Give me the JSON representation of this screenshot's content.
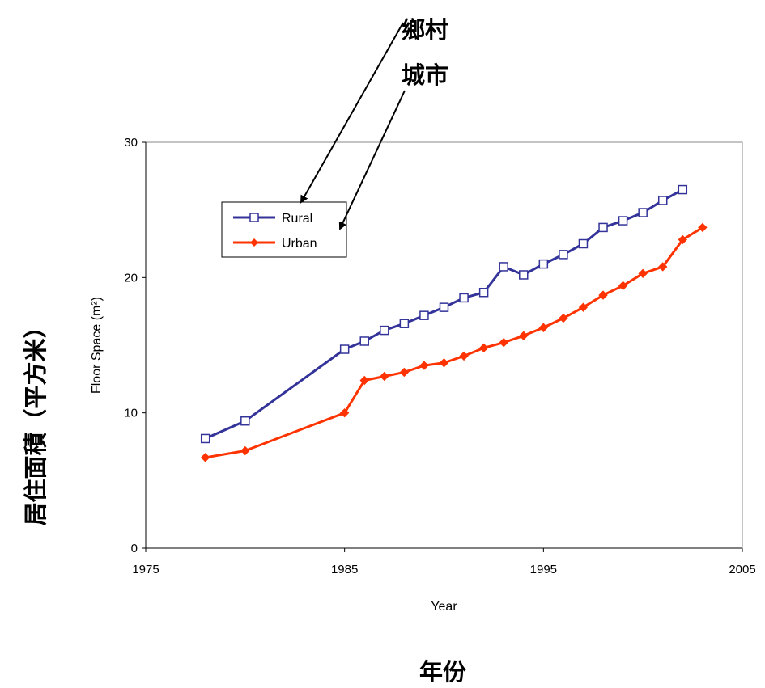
{
  "annotations": {
    "rural_cn": "鄉村",
    "urban_cn": "城市",
    "outer_xlabel": "年份",
    "outer_ylabel": "居住面積（平方米）"
  },
  "chart_data": {
    "type": "line",
    "title": "",
    "xlabel": "Year",
    "ylabel": "Floor Space (m²)",
    "xlim": [
      1975,
      2005
    ],
    "ylim": [
      0,
      30
    ],
    "xticks": [
      1975,
      1985,
      1995,
      2005
    ],
    "yticks": [
      0,
      10,
      20,
      30
    ],
    "grid": false,
    "legend_position": "upper-left",
    "series": [
      {
        "name": "Rural",
        "color": "#33339a",
        "marker": "open-square",
        "x": [
          1978,
          1980,
          1985,
          1986,
          1987,
          1988,
          1989,
          1990,
          1991,
          1992,
          1993,
          1994,
          1995,
          1996,
          1997,
          1998,
          1999,
          2000,
          2001,
          2002
        ],
        "y": [
          8.1,
          9.4,
          14.7,
          15.3,
          16.1,
          16.6,
          17.2,
          17.8,
          18.5,
          18.9,
          20.8,
          20.2,
          21.0,
          21.7,
          22.5,
          23.7,
          24.2,
          24.8,
          25.7,
          26.5
        ]
      },
      {
        "name": "Urban",
        "color": "#ff3300",
        "marker": "filled-diamond",
        "x": [
          1978,
          1980,
          1985,
          1986,
          1987,
          1988,
          1989,
          1990,
          1991,
          1992,
          1993,
          1994,
          1995,
          1996,
          1997,
          1998,
          1999,
          2000,
          2001,
          2002,
          2003
        ],
        "y": [
          6.7,
          7.2,
          10.0,
          12.4,
          12.7,
          13.0,
          13.5,
          13.7,
          14.2,
          14.8,
          15.2,
          15.7,
          16.3,
          17.0,
          17.8,
          18.7,
          19.4,
          20.3,
          20.8,
          22.8,
          23.7
        ]
      }
    ]
  }
}
